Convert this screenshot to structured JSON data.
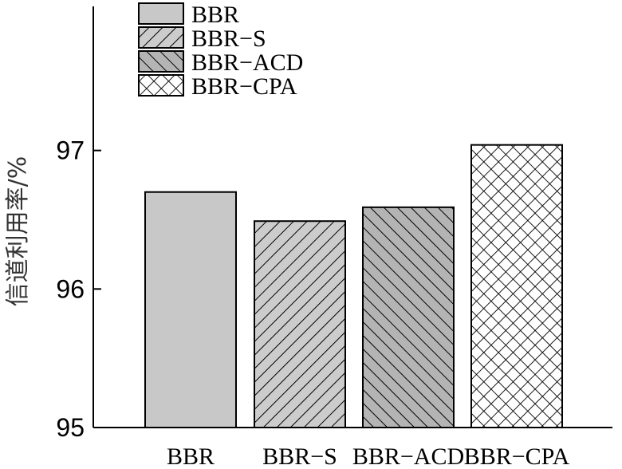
{
  "chart_data": {
    "type": "bar",
    "categories": [
      "BBR",
      "BBR−S",
      "BBR−ACD",
      "BBR−CPA"
    ],
    "values": [
      96.7,
      96.49,
      96.59,
      97.04
    ],
    "title": "",
    "xlabel": "",
    "ylabel": "信道利用率/%",
    "ylim": [
      95,
      98.04
    ],
    "yticks": [
      95,
      96,
      97
    ],
    "legend": {
      "placement": "top-left",
      "entries": [
        "BBR",
        "BBR−S",
        "BBR−ACD",
        "BBR−CPA"
      ]
    },
    "grid": false,
    "colors": {
      "bbr": "#c8c8c8",
      "bbr_s": "#cccccc",
      "bbr_acd": "#b4b4b4",
      "bbr_cpa": "#ffffff",
      "stroke": "#000000"
    },
    "patterns": [
      "solid",
      "diagonal-up",
      "diagonal-down",
      "crosshatch"
    ]
  }
}
